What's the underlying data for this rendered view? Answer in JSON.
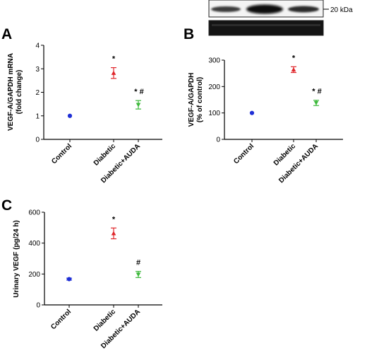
{
  "figure": {
    "blot": {
      "marker_label": "20 kDa"
    },
    "colors": {
      "Control": "#1f2fd6",
      "Diabetic": "#e0262b",
      "Diabetic+AUDA": "#3cb83a"
    },
    "marker_shapes": {
      "Control": "circle",
      "Diabetic": "triangle-up",
      "Diabetic+AUDA": "triangle-down"
    }
  },
  "chart_data": [
    {
      "panel": "A",
      "type": "scatter",
      "categories": [
        "Control",
        "Diabetic",
        "Diabetic+AUDA"
      ],
      "values": [
        1.0,
        2.82,
        1.47
      ],
      "errors": [
        0.0,
        0.23,
        0.18
      ],
      "significance": [
        "",
        "*",
        "* #"
      ],
      "ylabel": [
        "VEGF-A/GAPDH mRNA",
        "(fold change)"
      ],
      "ylim": [
        0,
        4
      ],
      "yticks": [
        0,
        1,
        2,
        3,
        4
      ]
    },
    {
      "panel": "B",
      "type": "scatter",
      "categories": [
        "Control",
        "Diabetic",
        "Diabetic+AUDA"
      ],
      "values": [
        100,
        264,
        138
      ],
      "errors": [
        0,
        11,
        10
      ],
      "significance": [
        "",
        "*",
        "* #"
      ],
      "ylabel": [
        "VEGF-A/GAPDH",
        "(% of control)"
      ],
      "ylim": [
        0,
        300
      ],
      "yticks": [
        0,
        100,
        200,
        300
      ]
    },
    {
      "panel": "C",
      "type": "scatter",
      "categories": [
        "Control",
        "Diabetic",
        "Diabetic+AUDA"
      ],
      "values": [
        167,
        463,
        197
      ],
      "errors": [
        6,
        35,
        20
      ],
      "significance": [
        "",
        "*",
        "#"
      ],
      "ylabel": [
        "Urinary VEGF (pg/24 h)"
      ],
      "ylim": [
        0,
        600
      ],
      "yticks": [
        0,
        200,
        400,
        600
      ]
    }
  ]
}
